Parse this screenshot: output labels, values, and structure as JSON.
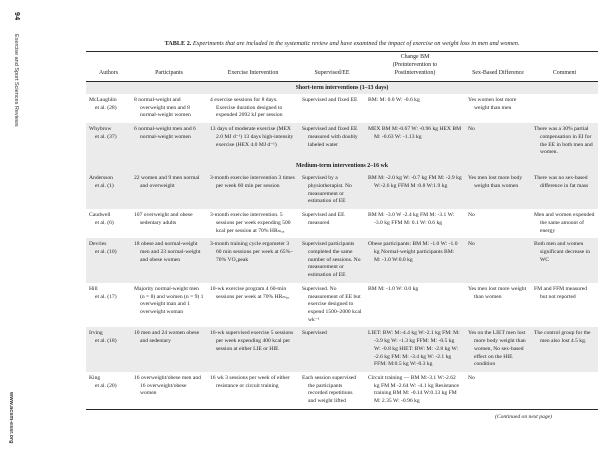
{
  "colors": {
    "row_shade": "#ebebeb",
    "rule": "#2a2a2a",
    "text": "#1c1c1c"
  },
  "page": {
    "page_number": "94",
    "journal": "Exercise and Sport Sciences Reviews",
    "website": "www.acsm-essr.org",
    "continued_note": "(Continued on next page)"
  },
  "table": {
    "label": "TABLE 2.",
    "caption": "Experiments that are included in the systematic review and have examined the impact of exercise on weight loss in men and women.",
    "columns": [
      "Authors",
      "Participants",
      "Exercise Intervention",
      "Supervised/EE",
      "Change BM\n(Preintervention to\nPostintervention)",
      "Sex-Based Difference",
      "Comment"
    ],
    "row_keys": [
      "authors",
      "participants",
      "intervention",
      "supervised",
      "change_bm",
      "sex_difference",
      "comment"
    ],
    "sections": [
      {
        "header": "Short-term interventions (1–13 days)",
        "rows": [
          {
            "shaded": false,
            "authors": "McLaughlin\net al. (28)",
            "participants": "8 normal-weight and overweight men and 8 normal-weight women",
            "intervention": "4 exercise sessions for 8 days. Exercise duration designed to expended 2092 kJ per session",
            "supervised": "Supervised and fixed EE",
            "change_bm": "BM: M: 0.0 W: -0.6 kg",
            "sex_difference": "Yes women lost more weight than men",
            "comment": ""
          },
          {
            "shaded": true,
            "authors": "Whybrow\net al. (37)",
            "participants": "6 normal-weight men and 6 normal-weight women",
            "intervention": "13 days of moderate exercise (MEX 2.0 MJ d⁻¹) 13 days high-intensity exercise (HEX 4.0 MJ d⁻¹)",
            "supervised": "Supervised and fixed EE measured with doubly labeled water",
            "change_bm": "MEX BM M:-0.67 W: -0.96 kg HEX BM M: -0.63 W: -1.13 kg",
            "sex_difference": "No",
            "comment": "There was a 30% partial compensation in EI for the EE in both men and women."
          }
        ]
      },
      {
        "header": "Medium-term interventions 2–16 wk",
        "rows": [
          {
            "shaded": true,
            "authors": "Andersson\net al. (1)",
            "participants": "22 women and 9 men normal and overweight",
            "intervention": "3-month exercise intervention 3 times per week 60 min per session",
            "supervised": "Supervised by a physiotherapist. No measurement or estimation of EE",
            "change_bm": "BM M: -2.0 kg W: -0.7 kg FM M: -2.9 kg W:-2.6 kg FFM M :0.8 W:1.9 kg",
            "sex_difference": "Yes men lost more body weight than women",
            "comment": "There was no sex-based difference in fat mass"
          },
          {
            "shaded": false,
            "authors": "Caudwell\net al. (6)",
            "participants": "107 overweight and obese sedentary adults",
            "intervention": "3-month exercise intervention. 5 sessions per week expending 500 kcal per session at 70% HRₘₐₓ",
            "supervised": "Supervised and EE measured",
            "change_bm": "BM M: -3.0 W -2.4 kg FM M: -3.1 W: -3.0 kg FFM M: 0.1 W: 0.6 kg",
            "sex_difference": "No",
            "comment": "Men and women expended the same amount of energy"
          },
          {
            "shaded": true,
            "authors": "Devries\net al. (10)",
            "participants": "18 obese and normal-weight men and 23 normal-weight and obese women",
            "intervention": "3-month training cycle ergometer 3 60 min sessions per week at 65%–70% VO₂peak",
            "supervised": "Supervised participants completed the same number of sessions. No measurement or estimation of EE",
            "change_bm": "Obese participants: BM M: -1.0 W: -1.0 kg Normal-weight participants BM: M: -1.0 W:0.0 kg",
            "sex_difference": "No",
            "comment": "Both men and women significant decrease in WC"
          },
          {
            "shaded": false,
            "authors": "Hill\net al. (17)",
            "participants": "Majority normal-weight men (n = 8) and women (n = 9) 1 overweight man and 1 overweight woman",
            "intervention": "10-wk exercise program 4 60-min sessions per week at 70% HRₘₐₓ",
            "supervised": "Supervised. No measurement of EE but exercise designed to expend 1500–2000 kcal wk⁻¹",
            "change_bm": "BM M: -1.0 W: 0.0 kg",
            "sex_difference": "Yes men lost more weight than women",
            "comment": "FM and FFM measured but not reported"
          },
          {
            "shaded": true,
            "authors": "Irving\net al. (18)",
            "participants": "10 men and 24 women obese and sedentary",
            "intervention": "16-wk supervised exercise 5 sessions per week expending 400 kcal per session at either LIE or HIE",
            "supervised": "Supervised",
            "change_bm": "LIET: BW: M:-4.4 kg W:-2.1 kg FM: M: -3.9 kg W: -1.3 kg FFM: M: -0.5 kg W: -0.8 kg HIET: BW: M: -2.8 kg W: -2.6 kg FM: M: -3.4 kg W: -2.1 kg FFM: M:0.5 kg W:-0.3 kg",
            "sex_difference": "Yes on the LIET men lost more body weight than women, No sex-based effect on the HIE condition",
            "comment": "The control group for the men also lost 4.5 kg."
          },
          {
            "shaded": false,
            "authors": "King\net al. (20)",
            "participants": "16 overweight/obese men and 16 overweight/obese women",
            "intervention": "16 wk 3 sessions per week of either resistance or circuit training",
            "supervised": "Each session supervised the participants recorded repetitions and weight lifted",
            "change_bm": "Circuit training — BM M:-3.1 W:-2.62 kg FM M -2.64 W: -4.1 kg Resistance training BM M: -0.14 W:0.13 kg FM M: 2.35 W: -0.96 kg",
            "sex_difference": "No",
            "comment": ""
          }
        ]
      }
    ]
  }
}
